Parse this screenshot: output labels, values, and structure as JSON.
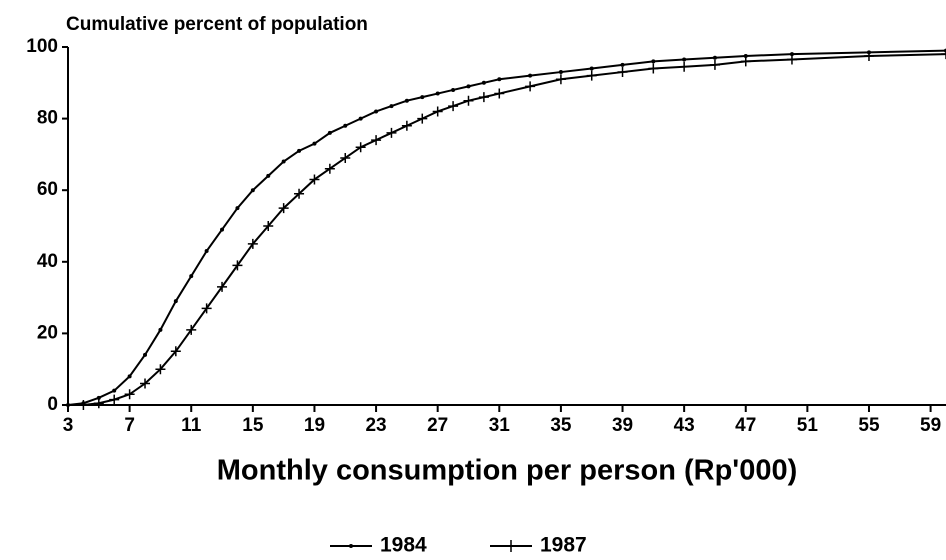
{
  "chart_data": {
    "type": "line",
    "title": "Cumulative percent of population",
    "x_label": "Monthly consumption per person (Rp'000)",
    "x": [
      3,
      4,
      5,
      6,
      7,
      8,
      9,
      10,
      11,
      12,
      13,
      14,
      15,
      16,
      17,
      18,
      19,
      20,
      21,
      22,
      23,
      24,
      25,
      26,
      27,
      28,
      29,
      30,
      31,
      33,
      35,
      37,
      39,
      41,
      43,
      45,
      47,
      50,
      55,
      60
    ],
    "series": [
      {
        "name": "1984",
        "color": "#000000",
        "marker": "dot",
        "values": [
          0,
          0.5,
          2,
          4,
          8,
          14,
          21,
          29,
          36,
          43,
          49,
          55,
          60,
          64,
          68,
          71,
          73,
          76,
          78,
          80,
          82,
          83.5,
          85,
          86,
          87,
          88,
          89,
          90,
          91,
          92,
          93,
          94,
          95,
          96,
          96.5,
          97,
          97.5,
          98,
          98.5,
          99
        ]
      },
      {
        "name": "1987",
        "color": "#000000",
        "marker": "plus",
        "values": [
          0,
          0,
          0.5,
          1.5,
          3,
          6,
          10,
          15,
          21,
          27,
          33,
          39,
          45,
          50,
          55,
          59,
          63,
          66,
          69,
          72,
          74,
          76,
          78,
          80,
          82,
          83.5,
          85,
          86,
          87,
          89,
          91,
          92,
          93,
          94,
          94.5,
          95,
          96,
          96.5,
          97.5,
          98
        ]
      }
    ],
    "xlim": [
      3,
      60
    ],
    "xticks": [
      3,
      7,
      11,
      15,
      19,
      23,
      27,
      31,
      35,
      39,
      43,
      47,
      51,
      55,
      59
    ],
    "ylim": [
      0,
      100
    ],
    "yticks": [
      0,
      20,
      40,
      60,
      80,
      100
    ],
    "grid": false,
    "legend": "bottom"
  }
}
